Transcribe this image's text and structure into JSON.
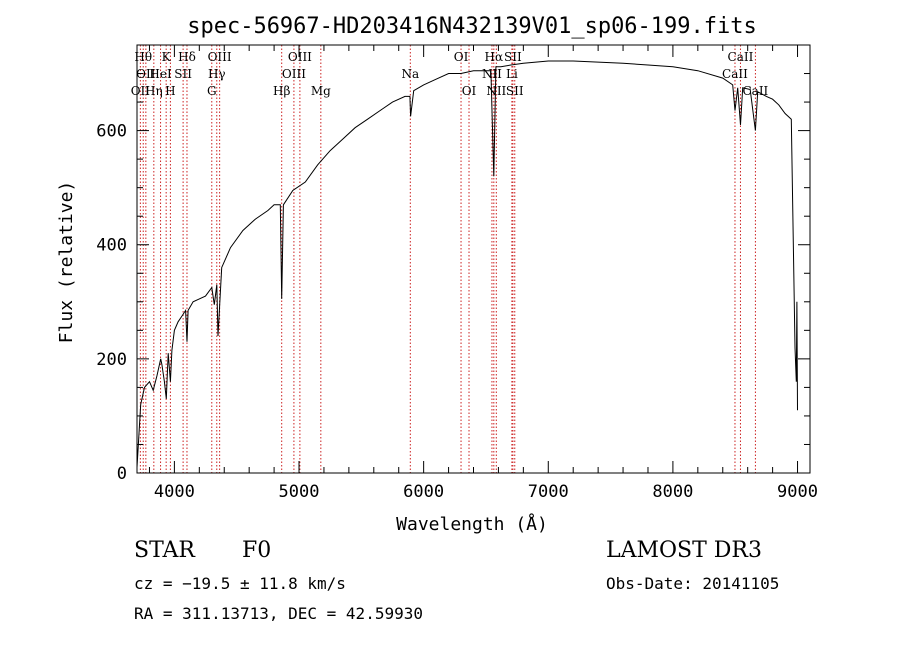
{
  "chart_data": {
    "type": "line",
    "title": "spec-56967-HD203416N432139V01_sp06-199.fits",
    "xlabel": "Wavelength (Å)",
    "ylabel": "Flux (relative)",
    "xlim": [
      3700,
      9100
    ],
    "ylim": [
      0,
      750
    ],
    "xticks": [
      4000,
      5000,
      6000,
      7000,
      8000,
      9000
    ],
    "yticks": [
      0,
      200,
      400,
      600
    ],
    "grid": false,
    "series": [
      {
        "name": "Flux",
        "x": [
          3700,
          3730,
          3760,
          3800,
          3830,
          3860,
          3890,
          3900,
          3920,
          3935,
          3950,
          3968,
          3980,
          4000,
          4030,
          4060,
          4090,
          4101,
          4110,
          4150,
          4200,
          4250,
          4300,
          4320,
          4340,
          4350,
          4380,
          4450,
          4550,
          4650,
          4750,
          4800,
          4850,
          4861,
          4875,
          4950,
          5050,
          5150,
          5250,
          5350,
          5450,
          5550,
          5650,
          5750,
          5850,
          5890,
          5895,
          5920,
          6000,
          6100,
          6200,
          6300,
          6400,
          6500,
          6540,
          6563,
          6580,
          6620,
          6700,
          6800,
          7000,
          7200,
          7400,
          7600,
          7800,
          8000,
          8200,
          8400,
          8480,
          8498,
          8520,
          8542,
          8560,
          8620,
          8662,
          8680,
          8750,
          8800,
          8850,
          8900,
          8950,
          8980,
          8990,
          8995,
          9000
        ],
        "values": [
          10,
          120,
          150,
          160,
          145,
          170,
          200,
          190,
          160,
          130,
          210,
          160,
          215,
          250,
          265,
          275,
          285,
          230,
          285,
          300,
          305,
          310,
          325,
          295,
          330,
          240,
          360,
          395,
          425,
          445,
          460,
          470,
          470,
          305,
          470,
          495,
          510,
          540,
          565,
          585,
          605,
          620,
          635,
          650,
          660,
          660,
          625,
          670,
          680,
          690,
          700,
          700,
          705,
          705,
          705,
          520,
          712,
          712,
          715,
          718,
          722,
          722,
          720,
          718,
          715,
          712,
          705,
          692,
          680,
          635,
          675,
          610,
          675,
          672,
          600,
          668,
          660,
          655,
          645,
          630,
          620,
          220,
          160,
          300,
          110
        ]
      }
    ],
    "lines": [
      {
        "x": 3727,
        "labels": [
          "OII"
        ],
        "row": [
          2
        ]
      },
      {
        "x": 3750,
        "labels": [
          "Hθ"
        ],
        "row": [
          0
        ]
      },
      {
        "x": 3771,
        "labels": [
          "OII"
        ],
        "row": [
          1
        ]
      },
      {
        "x": 3835,
        "labels": [
          "Hη"
        ],
        "row": [
          2
        ]
      },
      {
        "x": 3889,
        "labels": [
          "HeI"
        ],
        "row": [
          1
        ]
      },
      {
        "x": 3934,
        "labels": [
          "K"
        ],
        "row": [
          0
        ]
      },
      {
        "x": 3968,
        "labels": [
          "H"
        ],
        "row": [
          2
        ]
      },
      {
        "x": 4070,
        "labels": [
          "SII"
        ],
        "row": [
          1
        ]
      },
      {
        "x": 4101,
        "labels": [
          "Hδ"
        ],
        "row": [
          0
        ]
      },
      {
        "x": 4300,
        "labels": [
          "G"
        ],
        "row": [
          2
        ]
      },
      {
        "x": 4340,
        "labels": [
          "Hγ"
        ],
        "row": [
          1
        ]
      },
      {
        "x": 4363,
        "labels": [
          "OIII"
        ],
        "row": [
          0
        ]
      },
      {
        "x": 4861,
        "labels": [
          "Hβ"
        ],
        "row": [
          2
        ]
      },
      {
        "x": 4959,
        "labels": [
          "OIII"
        ],
        "row": [
          1
        ]
      },
      {
        "x": 5007,
        "labels": [
          "OIII"
        ],
        "row": [
          0
        ]
      },
      {
        "x": 5175,
        "labels": [
          "Mg"
        ],
        "row": [
          2
        ]
      },
      {
        "x": 5893,
        "labels": [
          "Na"
        ],
        "row": [
          1
        ]
      },
      {
        "x": 6300,
        "labels": [
          "OI"
        ],
        "row": [
          0
        ]
      },
      {
        "x": 6364,
        "labels": [
          "OI"
        ],
        "row": [
          2
        ]
      },
      {
        "x": 6548,
        "labels": [
          "NII"
        ],
        "row": [
          1
        ]
      },
      {
        "x": 6563,
        "labels": [
          "Hα"
        ],
        "row": [
          0
        ]
      },
      {
        "x": 6583,
        "labels": [
          "NII"
        ],
        "row": [
          2
        ]
      },
      {
        "x": 6708,
        "labels": [
          "Li"
        ],
        "row": [
          1
        ]
      },
      {
        "x": 6716,
        "labels": [
          "SII"
        ],
        "row": [
          0
        ]
      },
      {
        "x": 6731,
        "labels": [
          "SII"
        ],
        "row": [
          2
        ]
      },
      {
        "x": 8498,
        "labels": [
          "CaII"
        ],
        "row": [
          1
        ]
      },
      {
        "x": 8542,
        "labels": [
          "CaII"
        ],
        "row": [
          0
        ]
      },
      {
        "x": 8662,
        "labels": [
          "CaII"
        ],
        "row": [
          2
        ]
      }
    ]
  },
  "info": {
    "object_class": "STAR",
    "subclass": "F0",
    "survey": "LAMOST DR3",
    "cz": "cz = −19.5 ± 11.8 km/s",
    "obs_date": "Obs-Date: 20141105",
    "radec": "RA = 311.13713, DEC =  42.59930"
  }
}
